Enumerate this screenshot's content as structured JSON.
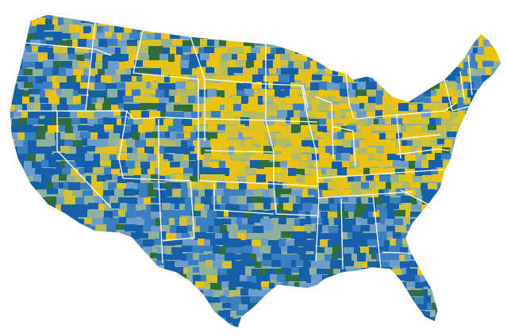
{
  "map": {
    "type": "county choropleth",
    "region": "contiguous-united-states",
    "boundaries": [
      "county",
      "state"
    ],
    "state_boundary_color": "#ffffff",
    "background_color": "#ffffff",
    "palette": [
      "#1660aa",
      "#3a7fc0",
      "#6c9ccc",
      "#8fb09a",
      "#b5bb63",
      "#d4c232",
      "#ebc20e",
      "#2f6d3c"
    ],
    "legend": "none",
    "title": ""
  }
}
